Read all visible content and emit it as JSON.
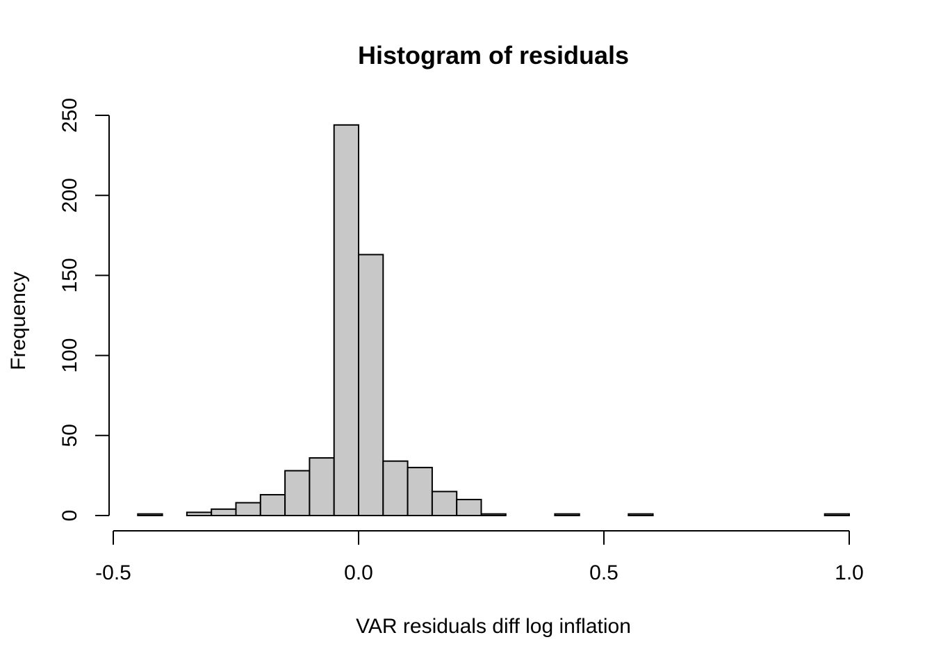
{
  "chart_data": {
    "type": "bar",
    "title": "Histogram of residuals",
    "xlabel": "VAR residuals diff log inflation",
    "ylabel": "Frequency",
    "xlim": [
      -0.5,
      1.0
    ],
    "ylim": [
      0,
      250
    ],
    "x_ticks": [
      {
        "value": -0.5,
        "label": "-0.5"
      },
      {
        "value": 0.0,
        "label": "0.0"
      },
      {
        "value": 0.5,
        "label": "0.5"
      },
      {
        "value": 1.0,
        "label": "1.0"
      }
    ],
    "y_ticks": [
      {
        "value": 0,
        "label": "0"
      },
      {
        "value": 50,
        "label": "50"
      },
      {
        "value": 100,
        "label": "100"
      },
      {
        "value": 150,
        "label": "150"
      },
      {
        "value": 200,
        "label": "200"
      },
      {
        "value": 250,
        "label": "250"
      }
    ],
    "bin_width": 0.05,
    "bins": [
      {
        "start": -0.45,
        "count": 1
      },
      {
        "start": -0.4,
        "count": 0
      },
      {
        "start": -0.35,
        "count": 2
      },
      {
        "start": -0.3,
        "count": 4
      },
      {
        "start": -0.25,
        "count": 8
      },
      {
        "start": -0.2,
        "count": 13
      },
      {
        "start": -0.15,
        "count": 28
      },
      {
        "start": -0.1,
        "count": 36
      },
      {
        "start": -0.05,
        "count": 244
      },
      {
        "start": 0.0,
        "count": 163
      },
      {
        "start": 0.05,
        "count": 34
      },
      {
        "start": 0.1,
        "count": 30
      },
      {
        "start": 0.15,
        "count": 15
      },
      {
        "start": 0.2,
        "count": 10
      },
      {
        "start": 0.25,
        "count": 1
      },
      {
        "start": 0.3,
        "count": 0
      },
      {
        "start": 0.35,
        "count": 0
      },
      {
        "start": 0.4,
        "count": 1
      },
      {
        "start": 0.45,
        "count": 0
      },
      {
        "start": 0.5,
        "count": 0
      },
      {
        "start": 0.55,
        "count": 1
      },
      {
        "start": 0.6,
        "count": 0
      },
      {
        "start": 0.65,
        "count": 0
      },
      {
        "start": 0.7,
        "count": 0
      },
      {
        "start": 0.75,
        "count": 0
      },
      {
        "start": 0.8,
        "count": 0
      },
      {
        "start": 0.85,
        "count": 0
      },
      {
        "start": 0.9,
        "count": 0
      },
      {
        "start": 0.95,
        "count": 1
      }
    ],
    "bar_color": "#c8c8c8",
    "grid": false,
    "legend": "none"
  }
}
